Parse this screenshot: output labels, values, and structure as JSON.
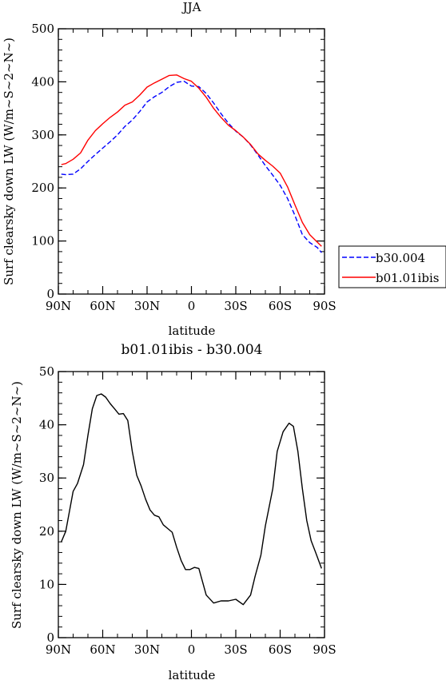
{
  "chart_data": [
    {
      "type": "line",
      "title": "JJA",
      "xlabel": "latitude",
      "ylabel": "Surf clearsky down LW (W/m~S~2~N~)",
      "xlim": [
        90,
        -90
      ],
      "ylim": [
        0,
        500
      ],
      "xticks": [
        90,
        60,
        30,
        0,
        -30,
        -60,
        -90
      ],
      "xtick_labels": [
        "90N",
        "60N",
        "30N",
        "0",
        "30S",
        "60S",
        "90S"
      ],
      "yticks": [
        0,
        100,
        200,
        300,
        400,
        500
      ],
      "ytick_labels": [
        "0",
        "100",
        "200",
        "300",
        "400",
        "500"
      ],
      "legend_position": "right",
      "series": [
        {
          "name": "b30.004",
          "color": "#0000ff",
          "dash": "dashed",
          "x": [
            88,
            85,
            80,
            75,
            70,
            65,
            60,
            55,
            50,
            45,
            40,
            35,
            30,
            25,
            20,
            15,
            10,
            5,
            0,
            -5,
            -10,
            -15,
            -20,
            -25,
            -30,
            -35,
            -40,
            -45,
            -50,
            -55,
            -60,
            -65,
            -70,
            -75,
            -80,
            -85,
            -88
          ],
          "y": [
            226,
            225,
            226,
            236,
            250,
            263,
            275,
            287,
            300,
            316,
            328,
            344,
            362,
            372,
            380,
            391,
            399,
            401,
            392,
            391,
            378,
            360,
            340,
            322,
            307,
            296,
            281,
            262,
            242,
            224,
            205,
            180,
            148,
            112,
            97,
            88,
            78
          ]
        },
        {
          "name": "b01.01ibis",
          "color": "#ff0000",
          "dash": "solid",
          "x": [
            88,
            85,
            80,
            75,
            70,
            65,
            60,
            55,
            50,
            45,
            40,
            35,
            30,
            25,
            20,
            15,
            10,
            5,
            0,
            -5,
            -10,
            -15,
            -20,
            -25,
            -30,
            -35,
            -40,
            -45,
            -50,
            -55,
            -60,
            -65,
            -70,
            -75,
            -80,
            -85,
            -88
          ],
          "y": [
            244,
            246,
            254,
            266,
            290,
            308,
            321,
            333,
            343,
            356,
            362,
            375,
            390,
            398,
            405,
            412,
            413,
            406,
            401,
            388,
            371,
            350,
            333,
            318,
            308,
            296,
            282,
            264,
            252,
            241,
            228,
            202,
            168,
            135,
            112,
            98,
            90
          ]
        }
      ]
    },
    {
      "type": "line",
      "title": "b01.01ibis - b30.004",
      "xlabel": "latitude",
      "ylabel": "Surf clearsky down LW (W/m~S~2~N~)",
      "xlim": [
        90,
        -90
      ],
      "ylim": [
        0,
        50
      ],
      "xticks": [
        90,
        60,
        30,
        0,
        -30,
        -60,
        -90
      ],
      "xtick_labels": [
        "90N",
        "60N",
        "30N",
        "0",
        "30S",
        "60S",
        "90S"
      ],
      "yticks": [
        0,
        10,
        20,
        30,
        40,
        50
      ],
      "ytick_labels": [
        "0",
        "10",
        "20",
        "30",
        "40",
        "50"
      ],
      "series": [
        {
          "color": "#000000",
          "dash": "solid",
          "x": [
            88,
            85,
            80,
            77,
            73,
            70,
            67,
            64,
            61,
            58,
            55,
            52,
            49,
            46,
            43,
            40,
            37,
            34,
            31,
            28,
            25,
            22,
            19,
            16,
            13,
            10,
            7,
            4,
            1,
            -2,
            -5,
            -10,
            -15,
            -20,
            -25,
            -30,
            -35,
            -40,
            -43,
            -47,
            -50,
            -55,
            -58,
            -62,
            -66,
            -69,
            -72,
            -75,
            -78,
            -81,
            -84,
            -88
          ],
          "y": [
            18,
            20,
            27.5,
            29,
            32.5,
            38,
            43,
            45.5,
            45.8,
            45.2,
            44,
            43,
            42,
            42.1,
            40.8,
            35,
            30.5,
            28.5,
            26,
            24,
            23,
            22.7,
            21.2,
            20.5,
            19.8,
            17,
            14.5,
            12.8,
            12.8,
            13.2,
            13,
            8,
            6.5,
            6.9,
            6.9,
            7.2,
            6.2,
            8,
            11.5,
            15.5,
            21,
            28,
            35,
            38.7,
            40.3,
            39.7,
            35,
            28,
            22,
            18.2,
            16,
            13
          ]
        }
      ]
    }
  ],
  "legend": {
    "items": [
      {
        "label": "b30.004",
        "color": "#0000ff",
        "dash": "dashed"
      },
      {
        "label": "b01.01ibis",
        "color": "#ff0000",
        "dash": "solid"
      }
    ]
  }
}
